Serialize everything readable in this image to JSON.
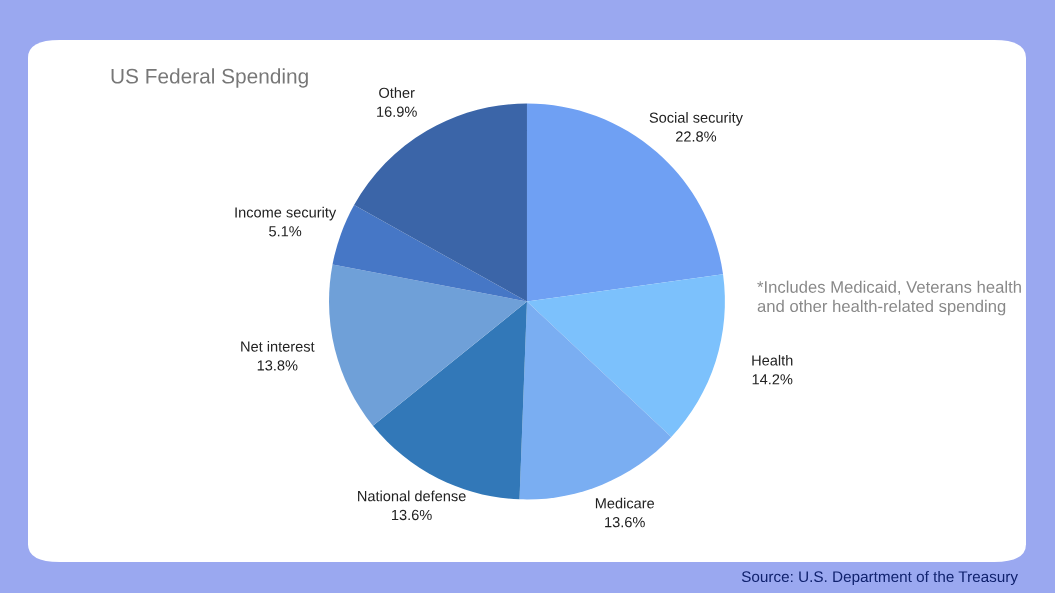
{
  "chart_data": {
    "type": "pie",
    "title": "US Federal Spending",
    "categories": [
      "Social security",
      "Health",
      "Medicare",
      "National defense",
      "Net interest",
      "Income security",
      "Other"
    ],
    "values": [
      22.8,
      14.2,
      13.6,
      13.6,
      13.8,
      5.1,
      16.9
    ],
    "value_labels": [
      "22.8%",
      "14.2%",
      "13.6%",
      "13.6%",
      "13.8%",
      "5.1%",
      "16.9%"
    ],
    "colors": [
      "#6fa0f3",
      "#7cc1fc",
      "#7aaef2",
      "#3278b8",
      "#6fa0d8",
      "#4677c6",
      "#3b65a8"
    ],
    "annotations": [
      "*Includes Medicaid, Veterans health and other health-related spending",
      "Source: U.S. Department of the Treasury"
    ],
    "legend": false
  }
}
